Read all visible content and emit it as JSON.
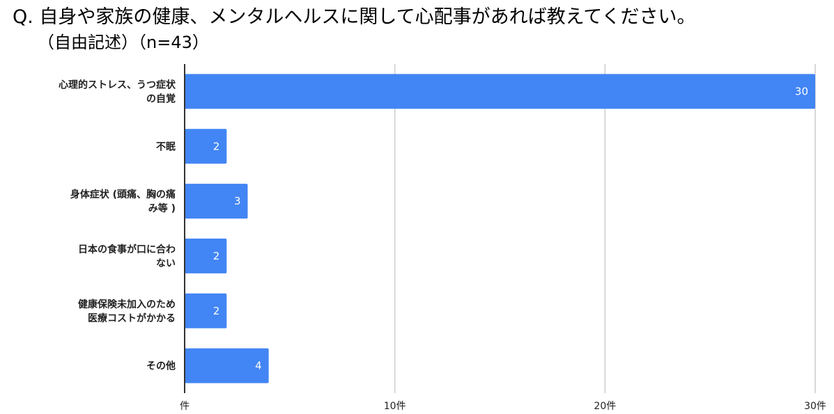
{
  "question": {
    "title": "Q. 自身や家族の健康、メンタルヘルスに関して心配事があれば教えてください。",
    "subtitle": "（自由記述）（n=43）"
  },
  "chart_data": {
    "type": "bar",
    "orientation": "horizontal",
    "categories": [
      [
        "心理的ストレス、うつ症状",
        "の自覚"
      ],
      [
        "不眠"
      ],
      [
        "身体症状 (頭痛、胸の痛",
        "み等 )"
      ],
      [
        "日本の食事が口に合わ",
        "ない"
      ],
      [
        "健康保険未加入のため",
        "医療コストがかかる"
      ],
      [
        "その他"
      ]
    ],
    "values": [
      30,
      2,
      3,
      2,
      2,
      4
    ],
    "xlim": [
      0,
      30
    ],
    "ticks": [
      0,
      10,
      20,
      30
    ],
    "tick_labels": [
      "件",
      "10件",
      "20件",
      "30件"
    ],
    "grid": true,
    "colors": {
      "bar": "#4285f4",
      "grid": "#cccccc",
      "axis": "#333333",
      "data_label": "#ffffff"
    }
  }
}
